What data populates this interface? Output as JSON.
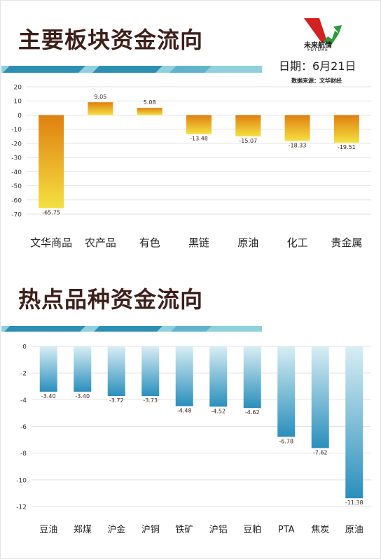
{
  "header": {
    "title_main": "主要板块资金流向",
    "title_hot": "热点品种资金流向",
    "logo_text": "未来航情",
    "logo_sub": "FUTURE",
    "date": "日期：6月21日",
    "source": "数据来源：文华财经"
  },
  "colors": {
    "title": "#3d1f1a",
    "sector_bar_top": "#e07f10",
    "sector_bar_bottom": "#f4e040",
    "hot_bar_top": "#d8eef4",
    "hot_bar_bottom": "#2a8fbc",
    "band_dark": "#2e8fb5",
    "band_light": "#8fd0dc"
  },
  "chart_data": [
    {
      "type": "bar",
      "categories": [
        "文华商品",
        "农产品",
        "有色",
        "黑链",
        "原油",
        "化工",
        "贵金属"
      ],
      "values": [
        -65.75,
        9.05,
        5.08,
        -13.48,
        -15.07,
        -18.33,
        -19.51
      ],
      "value_labels": [
        "-65.75",
        "9.05",
        "5.08",
        "-13.48",
        "-15.07",
        "-18.33",
        "-19.51"
      ],
      "yticks": [
        "20",
        "10",
        "0",
        "-10",
        "-20",
        "-30",
        "-40",
        "-50",
        "-60",
        "-70"
      ],
      "ylim": [
        -70,
        20
      ],
      "grid": true,
      "legend": "none"
    },
    {
      "type": "bar",
      "categories": [
        "豆油",
        "郑煤",
        "沪金",
        "沪铜",
        "铁矿",
        "沪铝",
        "豆粕",
        "PTA",
        "焦炭",
        "原油"
      ],
      "values": [
        -3.4,
        -3.4,
        -3.72,
        -3.73,
        -4.48,
        -4.52,
        -4.62,
        -6.78,
        -7.62,
        -11.38
      ],
      "value_labels": [
        "-3.40",
        "-3.40",
        "-3.72",
        "-3.73",
        "-4.48",
        "-4.52",
        "-4.62",
        "-6.78",
        "-7.62",
        "-11.38"
      ],
      "yticks": [
        "0",
        "-2",
        "-4",
        "-6",
        "-8",
        "-10",
        "-12"
      ],
      "ylim": [
        -12,
        0
      ],
      "grid": true,
      "legend": "none"
    }
  ]
}
